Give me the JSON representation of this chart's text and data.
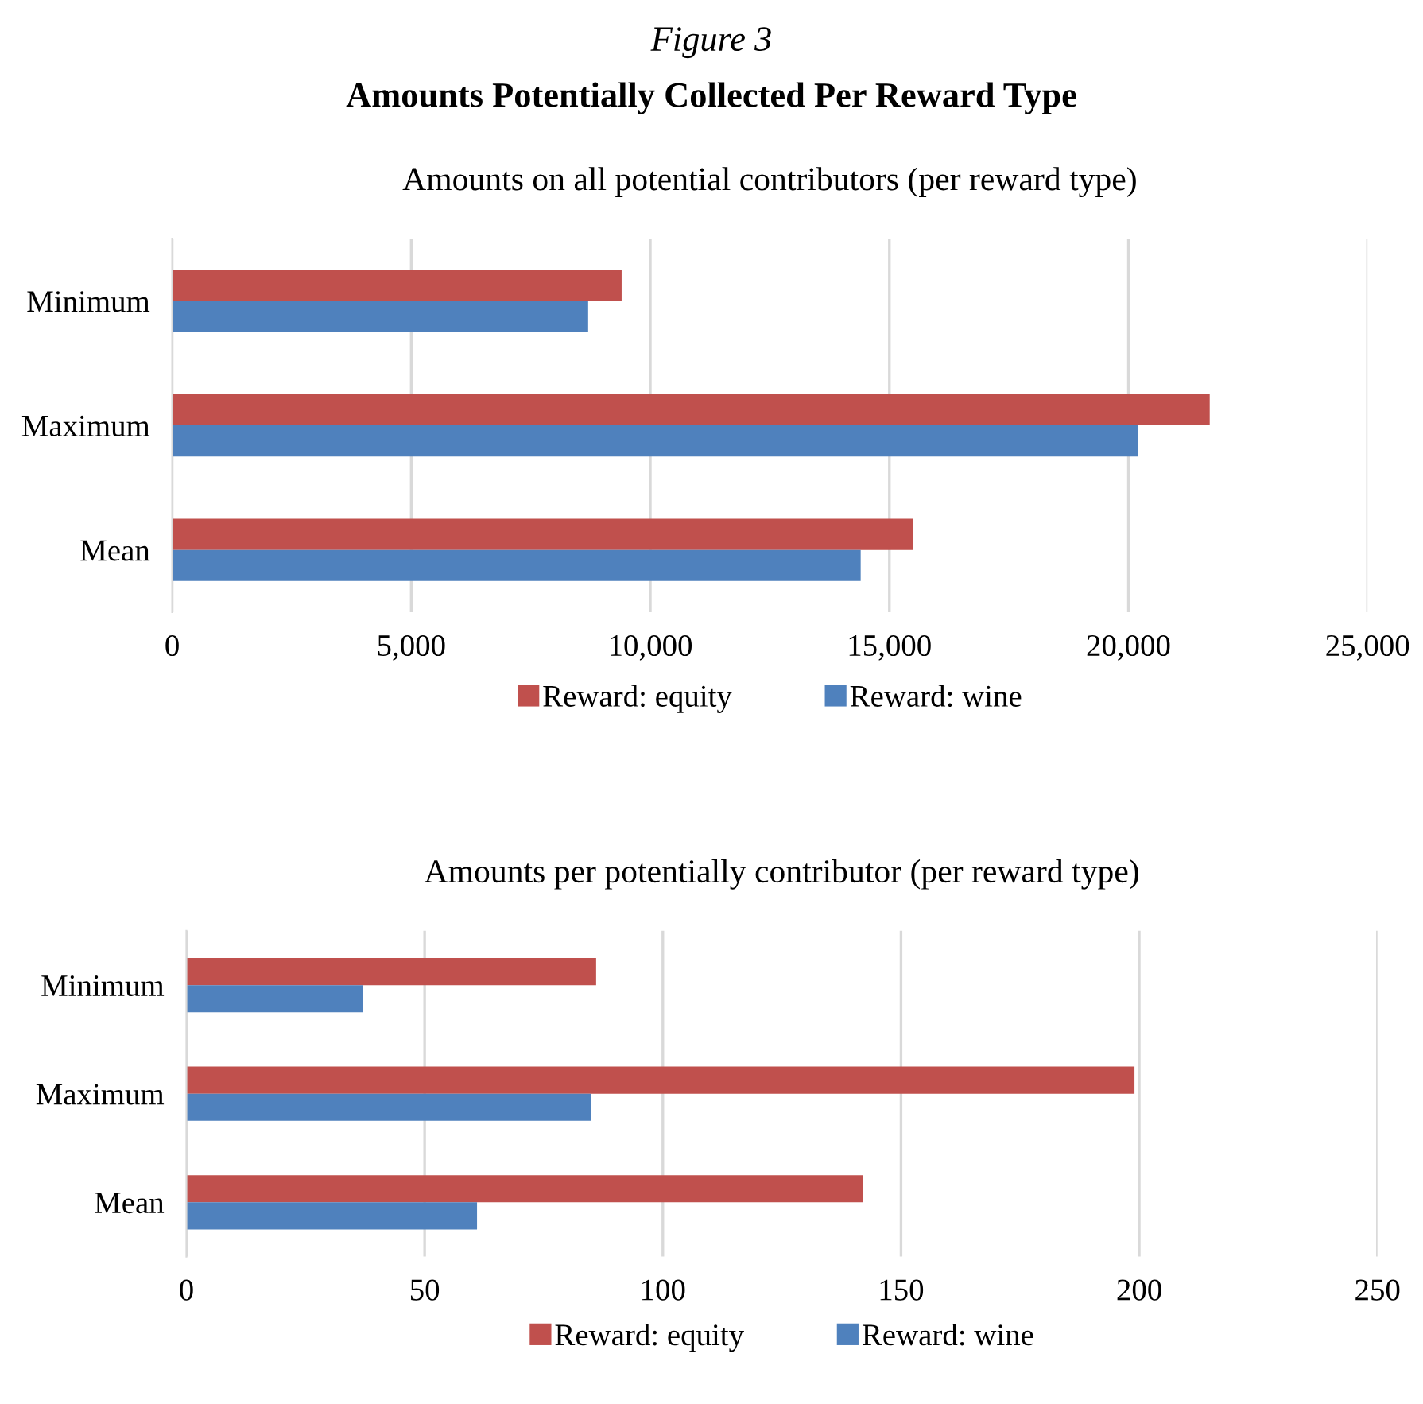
{
  "chart_data": [
    {
      "type": "bar",
      "orientation": "horizontal",
      "title": "Amounts on all potential contributors (per reward type)",
      "annotations": [
        "Figure 3",
        "Amounts Potentially Collected Per Reward Type"
      ],
      "categories": [
        "Minimum",
        "Maximum",
        "Mean"
      ],
      "series": [
        {
          "name": "Reward: equity",
          "color": "#c0504d",
          "values": [
            9400,
            21700,
            15500
          ]
        },
        {
          "name": "Reward: wine",
          "color": "#4f81bd",
          "values": [
            8700,
            20200,
            14400
          ]
        }
      ],
      "xlim": [
        0,
        25000
      ],
      "xticks": [
        0,
        {
          "value": 5000,
          "label": "5,000"
        },
        {
          "value": 10000,
          "label": "10,000"
        },
        {
          "value": 15000,
          "label": "15,000"
        },
        {
          "value": 20000,
          "label": "20,000"
        },
        {
          "value": 25000,
          "label": "25,000"
        }
      ],
      "grid": "x",
      "legend": "bottom"
    },
    {
      "type": "bar",
      "orientation": "horizontal",
      "title": "Amounts per potentially contributor (per reward type)",
      "categories": [
        "Minimum",
        "Maximum",
        "Mean"
      ],
      "series": [
        {
          "name": "Reward: equity",
          "color": "#c0504d",
          "values": [
            86,
            199,
            142
          ]
        },
        {
          "name": "Reward: wine",
          "color": "#4f81bd",
          "values": [
            37,
            85,
            61
          ]
        }
      ],
      "xlim": [
        0,
        250
      ],
      "xticks": [
        0,
        50,
        100,
        150,
        200,
        250
      ],
      "grid": "x",
      "legend": "bottom"
    }
  ]
}
